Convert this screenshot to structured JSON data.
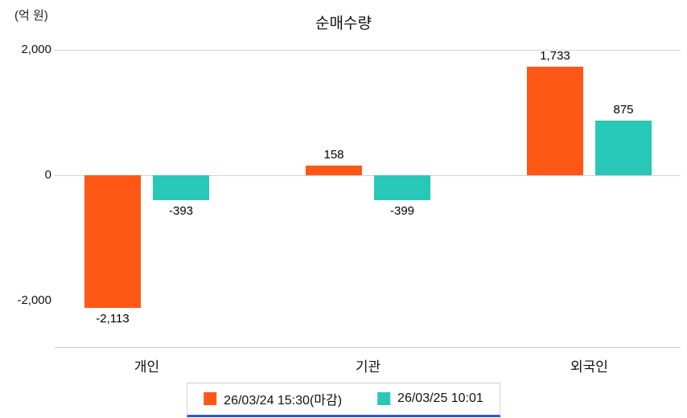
{
  "chart_data": {
    "type": "bar",
    "title": "순매수량",
    "unit_label": "(억 원)",
    "categories": [
      "개인",
      "기관",
      "외국인"
    ],
    "series": [
      {
        "name": "26/03/24 15:30(마감)",
        "color": "#FF5716",
        "values": [
          -2113,
          158,
          1733
        ]
      },
      {
        "name": "26/03/25 10:01",
        "color": "#29C7B7",
        "values": [
          -393,
          -399,
          875
        ]
      }
    ],
    "value_labels": [
      [
        "-2,113",
        "158",
        "1,733"
      ],
      [
        "-393",
        "-399",
        "875"
      ]
    ],
    "y_ticks": [
      {
        "value": 2000,
        "label": "2,000",
        "has_line": true
      },
      {
        "value": 0,
        "label": "0",
        "has_line": true
      },
      {
        "value": -2000,
        "label": "-2,000",
        "has_line": false
      }
    ],
    "ylim": [
      -2700,
      2000
    ],
    "xlabel": "",
    "ylabel": "(억 원)",
    "grid": "horizontal",
    "legend_position": "bottom"
  }
}
